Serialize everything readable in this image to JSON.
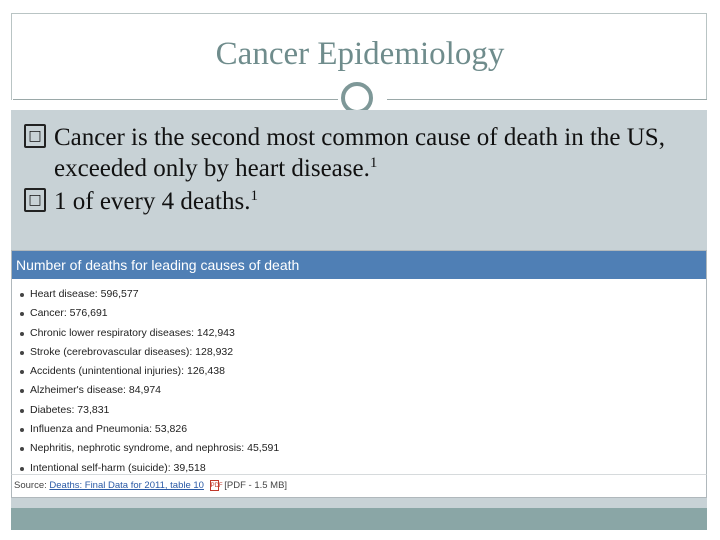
{
  "slide": {
    "title": "Cancer Epidemiology",
    "bullets": [
      {
        "text": "Cancer is the second most common cause of death in the US, exceeded only by heart disease.",
        "ref": "1"
      },
      {
        "text": "1 of every 4 deaths.",
        "ref": "1"
      }
    ]
  },
  "table": {
    "heading": "Number of deaths for leading causes of death",
    "items": [
      "Heart disease: 596,577",
      "Cancer: 576,691",
      "Chronic lower respiratory diseases: 142,943",
      "Stroke (cerebrovascular diseases): 128,932",
      "Accidents (unintentional injuries): 126,438",
      "Alzheimer's disease: 84,974",
      "Diabetes: 73,831",
      "Influenza and Pneumonia: 53,826",
      "Nephritis, nephrotic syndrome, and nephrosis: 45,591",
      "Intentional self-harm (suicide): 39,518"
    ],
    "source_label": "Source:",
    "source_link": "Deaths: Final Data for 2011, table 10",
    "source_pdf_icon_text": "PDF",
    "source_size": "[PDF - 1.5 MB]"
  },
  "icons": {
    "bullet_mark": "unknown-glyph-box",
    "ornament": "circle-ornament",
    "pdf": "pdf-icon"
  },
  "colors": {
    "title": "#6f8c8c",
    "panel": "#c8d2d6",
    "table_header": "#4f7fb5",
    "bottom_strip": "#8aa6a6"
  }
}
